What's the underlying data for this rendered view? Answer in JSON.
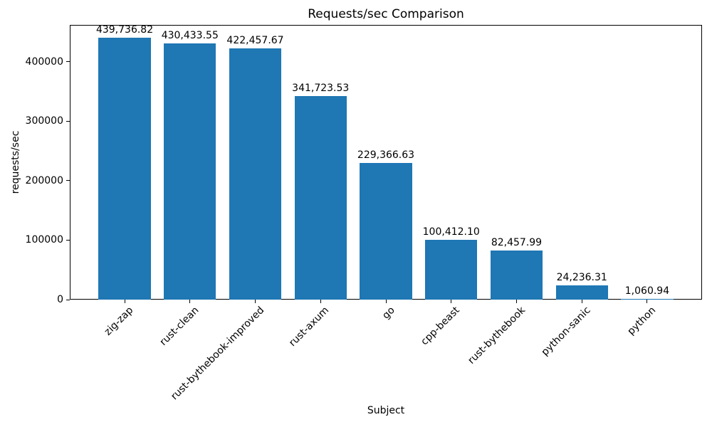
{
  "chart_data": {
    "type": "bar",
    "title": "Requests/sec Comparison",
    "xlabel": "Subject",
    "ylabel": "requests/sec",
    "categories": [
      "zig-zap",
      "rust-clean",
      "rust-bythebook-improved",
      "rust-axum",
      "go",
      "cpp-beast",
      "rust-bythebook",
      "python-sanic",
      "python"
    ],
    "values": [
      439736.82,
      430433.55,
      422457.67,
      341723.53,
      229366.63,
      100412.1,
      82457.99,
      24236.31,
      1060.94
    ],
    "value_labels": [
      "439,736.82",
      "430,433.55",
      "422,457.67",
      "341,723.53",
      "229,366.63",
      "100,412.10",
      "82,457.99",
      "24,236.31",
      "1,060.94"
    ],
    "yticks": [
      0,
      100000,
      200000,
      300000,
      400000
    ],
    "ytick_labels": [
      "0",
      "100000",
      "200000",
      "300000",
      "400000"
    ],
    "ylim": [
      0,
      461724
    ],
    "bar_color": "#1f77b4",
    "bar_rel_width": 0.8,
    "x_margin": 0.05,
    "grid": false,
    "legend": "none",
    "tick_rotation_deg": 45
  }
}
